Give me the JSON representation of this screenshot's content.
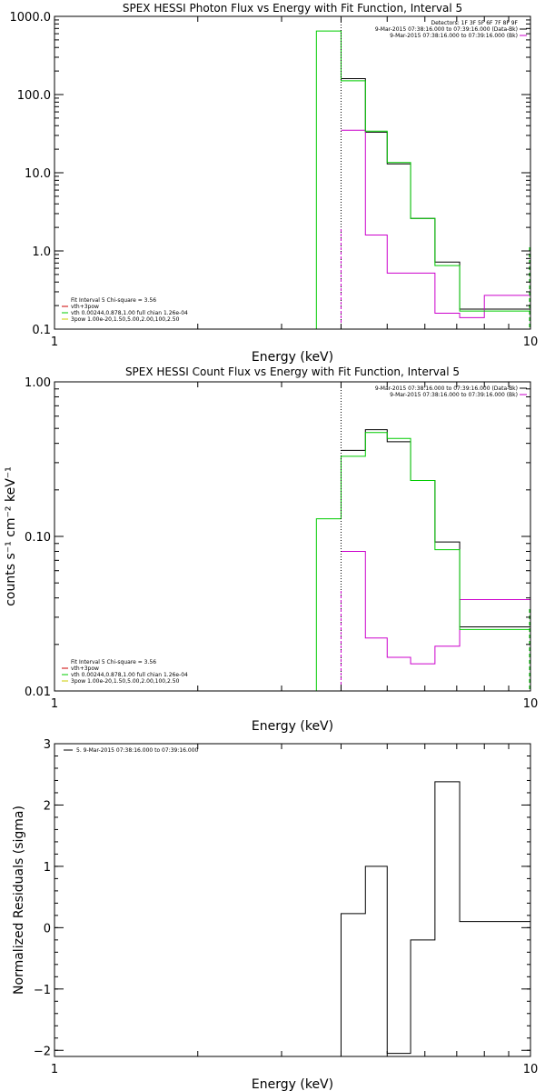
{
  "chart_data": [
    {
      "type": "line",
      "step": true,
      "title": "SPEX HESSI Photon Flux vs Energy with Fit Function, Interval 5",
      "xlabel": "Energy (keV)",
      "ylabel": "",
      "xscale": "log",
      "yscale": "log",
      "xlim": [
        1,
        10
      ],
      "ylim": [
        0.1,
        1000
      ],
      "x_ticks": [
        {
          "v": 1,
          "label": "1"
        },
        {
          "v": 10,
          "label": "10"
        }
      ],
      "y_ticks": [
        {
          "v": 0.1,
          "label": "0.1"
        },
        {
          "v": 1,
          "label": "1.0"
        },
        {
          "v": 10,
          "label": "10.0"
        },
        {
          "v": 100,
          "label": "100.0"
        },
        {
          "v": 1000,
          "label": "1000.0"
        }
      ],
      "vline": 4.0,
      "legend_top": [
        {
          "text": "Detectors: 1F 3F 5F 6F 7F 8F 9F",
          "color": ""
        },
        {
          "text": "9-Mar-2015 07:38:16.000 to 07:39:16.000 (Data-Bk)",
          "color": "#000000"
        },
        {
          "text": "9-Mar-2015 07:38:16.000 to 07:39:16.000 (Bk)",
          "color": "#cc00cc"
        }
      ],
      "legend_bottom": [
        {
          "text": "Fit Interval 5   Chi-square = 3.56",
          "color": ""
        },
        {
          "text": "vth+3pow",
          "color": "#cc0000"
        },
        {
          "text": "vth 0.00244,0.878,1.00  full chian 1.26e-04",
          "color": "#00cc00"
        },
        {
          "text": "3pow 1.00e-20,1.50,5.00,2.00,100,2.50",
          "color": "#cccc00"
        }
      ],
      "series": [
        {
          "name": "Data-Bk",
          "color": "#000000",
          "edges": [
            4.0,
            4.5,
            5.0,
            5.6,
            6.3,
            7.1,
            8.0,
            8.9,
            10.0
          ],
          "values": [
            160,
            33,
            13,
            2.6,
            0.72,
            0.18,
            0.18,
            0.18
          ]
        },
        {
          "name": "Bk",
          "color": "#cc00cc",
          "edges": [
            4.0,
            4.5,
            5.0,
            5.6,
            6.3,
            7.1,
            8.0,
            8.9,
            10.0
          ],
          "values": [
            35,
            1.6,
            0.52,
            0.52,
            0.16,
            0.14,
            0.27,
            0.27
          ]
        },
        {
          "name": "vth+3pow",
          "color": "#00cc00",
          "edges": [
            3.55,
            4.0,
            4.5,
            5.0,
            5.6,
            6.3,
            7.1,
            8.0,
            8.9,
            10.0
          ],
          "values": [
            650,
            150,
            34,
            13.5,
            2.6,
            0.65,
            0.17,
            0.17,
            0.17
          ],
          "start_at_bottom": true
        }
      ]
    },
    {
      "type": "line",
      "step": true,
      "title": "SPEX HESSI Count Flux vs Energy with Fit Function, Interval 5",
      "xlabel": "Energy (keV)",
      "ylabel": "counts s⁻¹ cm⁻² keV⁻¹",
      "xscale": "log",
      "yscale": "log",
      "xlim": [
        1,
        10
      ],
      "ylim": [
        0.01,
        1
      ],
      "x_ticks": [
        {
          "v": 1,
          "label": "1"
        },
        {
          "v": 10,
          "label": "10"
        }
      ],
      "y_ticks": [
        {
          "v": 0.01,
          "label": "0.01"
        },
        {
          "v": 0.1,
          "label": "0.10"
        },
        {
          "v": 1,
          "label": "1.00"
        }
      ],
      "vline": 4.0,
      "legend_top": [
        {
          "text": "9-Mar-2015 07:38:16.000 to 07:39:16.000 (Data-Bk)",
          "color": "#000000"
        },
        {
          "text": "9-Mar-2015 07:38:16.000 to 07:39:16.000 (Bk)",
          "color": "#cc00cc"
        }
      ],
      "legend_bottom": [
        {
          "text": "Fit Interval 5   Chi-square = 3.56",
          "color": ""
        },
        {
          "text": "vth+3pow",
          "color": "#cc0000"
        },
        {
          "text": "vth 0.00244,0.878,1.00  full chian 1.26e-04",
          "color": "#00cc00"
        },
        {
          "text": "3pow 1.00e-20,1.50,5.00,2.00,100,2.50",
          "color": "#cccc00"
        }
      ],
      "series": [
        {
          "name": "Data-Bk",
          "color": "#000000",
          "edges": [
            4.0,
            4.5,
            5.0,
            5.6,
            6.3,
            7.1,
            8.0,
            8.9,
            10.0
          ],
          "values": [
            0.36,
            0.49,
            0.41,
            0.23,
            0.092,
            0.026,
            0.026,
            0.026
          ]
        },
        {
          "name": "Bk",
          "color": "#cc00cc",
          "edges": [
            4.0,
            4.5,
            5.0,
            5.6,
            6.3,
            7.1,
            8.0,
            8.9,
            10.0
          ],
          "values": [
            0.08,
            0.022,
            0.0165,
            0.015,
            0.0195,
            0.039,
            0.039,
            0.039
          ]
        },
        {
          "name": "vth+3pow",
          "color": "#00cc00",
          "edges": [
            3.55,
            4.0,
            4.5,
            5.0,
            5.6,
            6.3,
            7.1,
            8.0,
            8.9,
            10.0
          ],
          "values": [
            0.13,
            0.33,
            0.47,
            0.43,
            0.23,
            0.082,
            0.025,
            0.025,
            0.025
          ],
          "start_at_bottom": true
        }
      ]
    },
    {
      "type": "line",
      "step": true,
      "title": "",
      "xlabel": "Energy (keV)",
      "ylabel": "Normalized Residuals (sigma)",
      "xscale": "log",
      "yscale": "linear",
      "xlim": [
        1,
        10
      ],
      "ylim": [
        -2.1,
        3.0
      ],
      "x_ticks": [
        {
          "v": 1,
          "label": "1"
        },
        {
          "v": 10,
          "label": "10"
        }
      ],
      "y_ticks": [
        {
          "v": -2,
          "label": "−2"
        },
        {
          "v": -1,
          "label": "−1"
        },
        {
          "v": 0,
          "label": "0"
        },
        {
          "v": 1,
          "label": "1"
        },
        {
          "v": 2,
          "label": "2"
        },
        {
          "v": 3,
          "label": "3"
        }
      ],
      "legend_top": [
        {
          "text": "5. 9-Mar-2015 07:38:16.000 to 07:39:16.000",
          "color": "#000000"
        }
      ],
      "legend_bottom": [],
      "series": [
        {
          "name": "Residuals",
          "color": "#000000",
          "edges": [
            4.0,
            4.5,
            5.0,
            5.6,
            6.3,
            7.1,
            8.0,
            8.9,
            10.0
          ],
          "values": [
            0.23,
            1.0,
            -2.05,
            -0.2,
            2.38,
            0.1,
            0.1,
            0.1
          ],
          "start_at_bottom": true
        }
      ]
    }
  ]
}
